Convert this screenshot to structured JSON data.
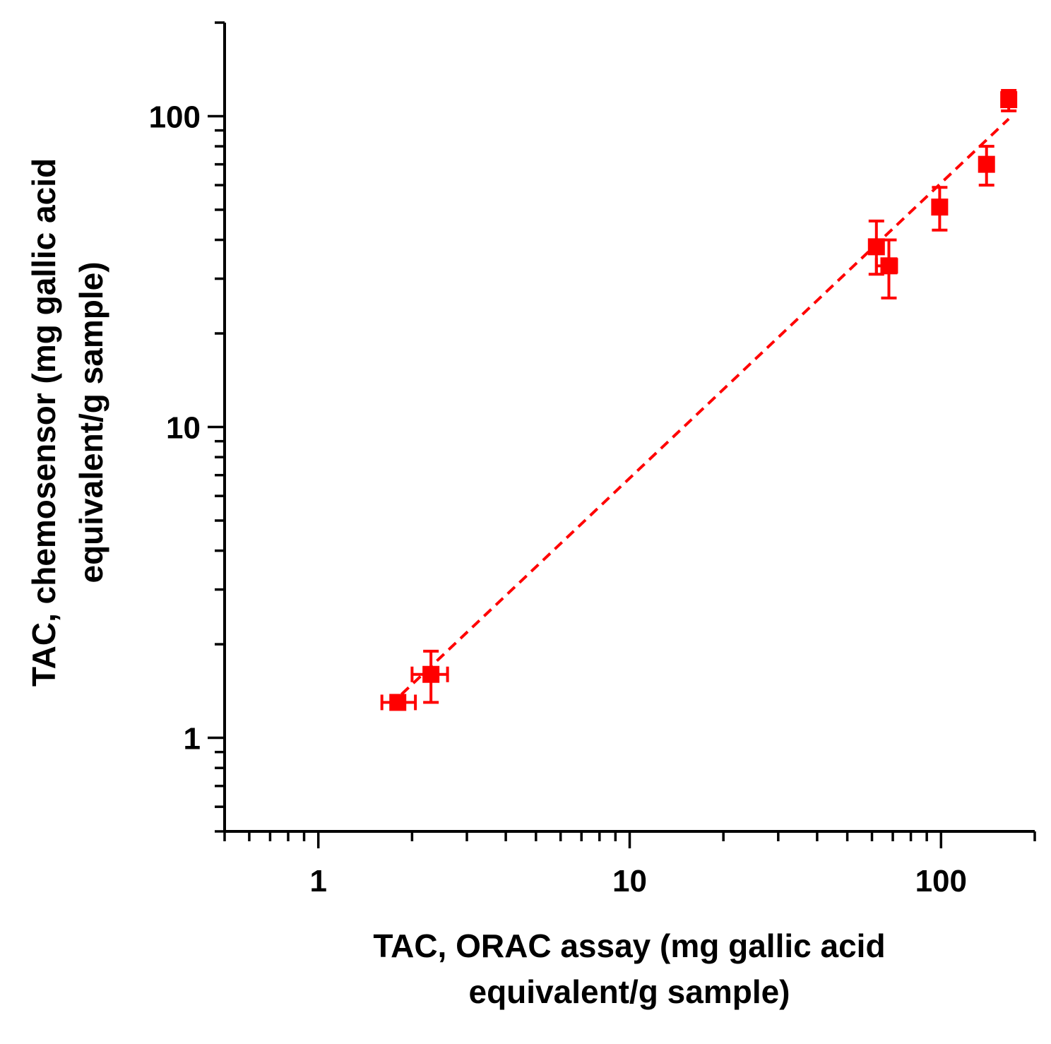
{
  "chart_data": {
    "type": "scatter",
    "xlabel_lines": [
      "TAC, ORAC assay (mg gallic acid",
      "equivalent/g sample)"
    ],
    "ylabel_lines": [
      "TAC, chemosensor (mg gallic acid",
      "equivalent/g sample)"
    ],
    "x_scale": "log",
    "y_scale": "log",
    "xlim": [
      0.5,
      200
    ],
    "ylim": [
      0.5,
      200
    ],
    "x_ticks": [
      1,
      10,
      100
    ],
    "x_tick_labels": [
      "1",
      "10",
      "100"
    ],
    "y_ticks": [
      1,
      10,
      100
    ],
    "y_tick_labels": [
      "1",
      "10",
      "100"
    ],
    "grid": false,
    "marker_color": "#ff0000",
    "line_color": "#ff0000",
    "points": [
      {
        "x": 1.8,
        "y": 1.3,
        "x_err": [
          1.6,
          2.05
        ],
        "y_err": null
      },
      {
        "x": 2.3,
        "y": 1.6,
        "x_err": [
          2.0,
          2.6
        ],
        "y_err": [
          1.3,
          1.9
        ]
      },
      {
        "x": 62,
        "y": 38,
        "x_err": null,
        "y_err": [
          31,
          46
        ]
      },
      {
        "x": 68,
        "y": 33,
        "x_err": [
          62,
          72
        ],
        "y_err": [
          26,
          40
        ]
      },
      {
        "x": 99,
        "y": 51,
        "x_err": null,
        "y_err": [
          43,
          59
        ]
      },
      {
        "x": 140,
        "y": 70,
        "x_err": null,
        "y_err": [
          60,
          80
        ]
      },
      {
        "x": 165,
        "y": 113,
        "x_err": null,
        "y_err": [
          104,
          121
        ]
      }
    ],
    "fit_line": {
      "style": "dashed",
      "x": [
        1.85,
        165
      ],
      "y": [
        1.38,
        98
      ]
    }
  }
}
